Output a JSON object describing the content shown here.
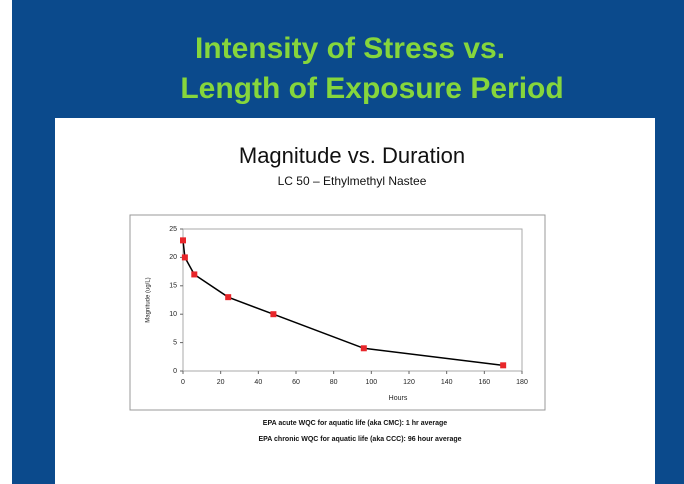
{
  "slide": {
    "title_lines": [
      "Intensity of Stress vs.",
      "Length of Exposure Period"
    ]
  },
  "chart_data": {
    "type": "line",
    "title": "Magnitude vs. Duration",
    "subtitle": "LC 50 – Ethylmethyl Nastee",
    "x_label": "Hours",
    "y_label": "Magnitude (ug/L)",
    "x": [
      0,
      1,
      6,
      24,
      48,
      96,
      170
    ],
    "values": [
      23,
      20,
      17,
      13,
      10,
      4,
      1
    ],
    "line_color": "#000000",
    "marker_color": "#e8262a",
    "xlim": [
      0,
      180
    ],
    "xticks": [
      0,
      20,
      40,
      60,
      80,
      100,
      120,
      140,
      160,
      180
    ],
    "ylim": [
      0,
      25
    ],
    "yticks": [
      0,
      5,
      10,
      15,
      20,
      25
    ]
  },
  "notes": [
    "EPA acute WQC for aquatic life (aka CMC): 1 hr average",
    "EPA chronic WQC for aquatic life (aka CCC): 96 hour average"
  ]
}
